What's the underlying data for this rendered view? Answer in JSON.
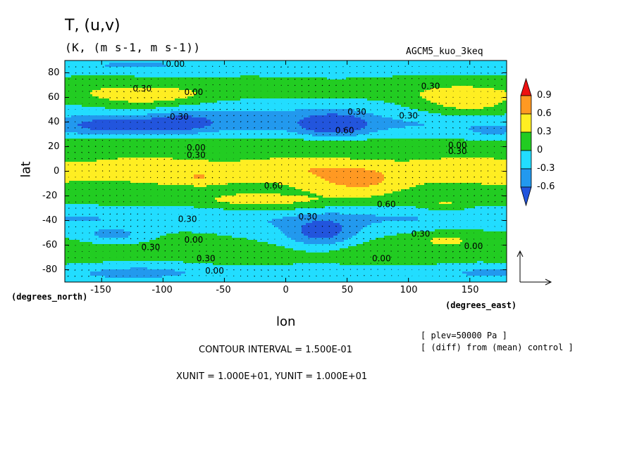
{
  "header": {
    "title": "T, (u,v)",
    "subtitle": "(K, (m s-1, m s-1))",
    "run_name": "AGCM5_kuo_3keq"
  },
  "axes": {
    "ylabel": "lat",
    "xlabel": "lon",
    "y_unit": "(degrees_north)",
    "x_unit": "(degrees_east)",
    "x_ticks": [
      "-150",
      "-100",
      "-50",
      "0",
      "50",
      "100",
      "150"
    ],
    "y_ticks": [
      "80",
      "60",
      "40",
      "20",
      "0",
      "-20",
      "-40",
      "-60",
      "-80"
    ]
  },
  "footer": {
    "plev": "[ plev=50000 Pa ]",
    "diff": "[ (diff) from (mean) control ]",
    "contour_interval": "CONTOUR INTERVAL = 1.500E-01",
    "units": "XUNIT = 1.000E+01, YUNIT = 1.000E+01"
  },
  "colorbar": {
    "labels": [
      "0.9",
      "0.6",
      "0.3",
      "0",
      "-0.3",
      "-0.6"
    ],
    "colors": {
      "above_0.9": "#ee1111",
      "0.6_0.9": "#ff9922",
      "0.3_0.6": "#ffee22",
      "0_0.3": "#22cc22",
      "-0.3_0": "#22ddff",
      "-0.6_-0.3": "#2299ee",
      "below_-0.6": "#2255dd"
    }
  },
  "contour_labels": [
    {
      "text": "0.00",
      "lon": -90,
      "lat": 85
    },
    {
      "text": "0.30",
      "lon": -117,
      "lat": 65
    },
    {
      "text": "0.00",
      "lon": -75,
      "lat": 62
    },
    {
      "text": "0.30",
      "lon": 118,
      "lat": 67
    },
    {
      "text": "0.30",
      "lon": 58,
      "lat": 46
    },
    {
      "text": "0.60",
      "lon": 48,
      "lat": 31
    },
    {
      "text": "0.30",
      "lon": 100,
      "lat": 43
    },
    {
      "text": "-0.30",
      "lon": -88,
      "lat": 42
    },
    {
      "text": "0.00",
      "lon": -73,
      "lat": 17
    },
    {
      "text": "0.30",
      "lon": -73,
      "lat": 11
    },
    {
      "text": "0.00",
      "lon": 140,
      "lat": 19
    },
    {
      "text": "0.30",
      "lon": 140,
      "lat": 14
    },
    {
      "text": "0.60",
      "lon": -10,
      "lat": -14
    },
    {
      "text": "0.60",
      "lon": 82,
      "lat": -29
    },
    {
      "text": "0.30",
      "lon": -80,
      "lat": -41
    },
    {
      "text": "0.30",
      "lon": 18,
      "lat": -39
    },
    {
      "text": "0.30",
      "lon": 110,
      "lat": -53
    },
    {
      "text": "0.30",
      "lon": -110,
      "lat": -64
    },
    {
      "text": "0.00",
      "lon": -75,
      "lat": -58
    },
    {
      "text": "0.00",
      "lon": 153,
      "lat": -63
    },
    {
      "text": "0.00",
      "lon": 78,
      "lat": -73
    },
    {
      "text": "0.30",
      "lon": -65,
      "lat": -73
    },
    {
      "text": "0.00",
      "lon": -58,
      "lat": -83
    }
  ],
  "chart_data": {
    "type": "heatmap",
    "title": "T, (u,v)",
    "subtitle": "(K, (m s-1, m s-1))",
    "xlabel": "lon",
    "ylabel": "lat",
    "xlim": [
      -180,
      180
    ],
    "ylim": [
      -90,
      90
    ],
    "grid": false,
    "legend": "right (colorbar)",
    "contour_interval": 0.15,
    "levels": [
      -0.6,
      -0.3,
      0,
      0.3,
      0.6,
      0.9
    ],
    "field_features": [
      {
        "lon": 40,
        "lat": 38,
        "value": -0.75,
        "width": 28,
        "height": 10
      },
      {
        "lon": -140,
        "lat": 37,
        "value": -0.5,
        "width": 40,
        "height": 8
      },
      {
        "lon": -85,
        "lat": 40,
        "value": -0.55,
        "width": 30,
        "height": 9
      },
      {
        "lon": 0,
        "lat": 50,
        "value": -0.25,
        "width": 60,
        "height": 12
      },
      {
        "lon": 30,
        "lat": -50,
        "value": -0.75,
        "width": 30,
        "height": 12
      },
      {
        "lon": -140,
        "lat": -52,
        "value": -0.35,
        "width": 25,
        "height": 6
      },
      {
        "lon": -120,
        "lat": -82,
        "value": -0.35,
        "width": 50,
        "height": 6
      },
      {
        "lon": 60,
        "lat": -10,
        "value": 0.35,
        "width": 40,
        "height": 12
      },
      {
        "lon": -20,
        "lat": -25,
        "value": 0.3,
        "width": 50,
        "height": 10
      },
      {
        "lon": 130,
        "lat": -28,
        "value": 0.3,
        "width": 20,
        "height": 5
      },
      {
        "lon": -70,
        "lat": -5,
        "value": 0.25,
        "width": 8,
        "height": 4
      },
      {
        "lon": 150,
        "lat": 58,
        "value": 0.4,
        "width": 40,
        "height": 12
      },
      {
        "lon": -110,
        "lat": 62,
        "value": 0.35,
        "width": 50,
        "height": 8
      },
      {
        "lon": 0,
        "lat": 2,
        "value": 0.1,
        "width": 80,
        "height": 6
      },
      {
        "lon": 130,
        "lat": -55,
        "value": 0.35,
        "width": 30,
        "height": 7
      },
      {
        "lon": -120,
        "lat": 87,
        "value": -0.3,
        "width": 45,
        "height": 4
      },
      {
        "lon": 170,
        "lat": -82,
        "value": -0.3,
        "width": 40,
        "height": 5
      },
      {
        "lon": 170,
        "lat": 30,
        "value": -0.2,
        "width": 30,
        "height": 7
      }
    ]
  }
}
